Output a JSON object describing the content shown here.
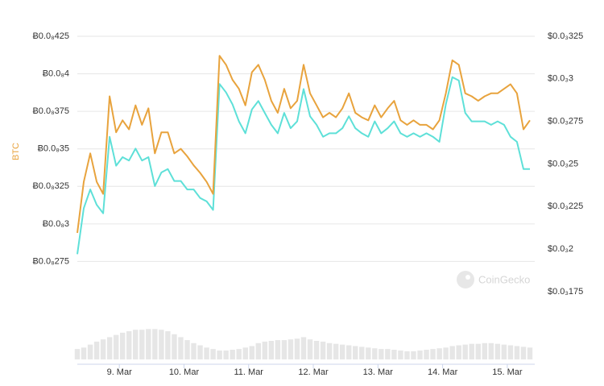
{
  "chart_data": {
    "type": "line",
    "y_axis_label": "BTC",
    "watermark": "CoinGecko",
    "xlim": [
      0,
      70
    ],
    "xticks": [
      {
        "value": 6.5,
        "label": "9. Mar"
      },
      {
        "value": 16.5,
        "label": "10. Mar"
      },
      {
        "value": 26.5,
        "label": "11. Mar"
      },
      {
        "value": 36.5,
        "label": "12. Mar"
      },
      {
        "value": 46.5,
        "label": "13. Mar"
      },
      {
        "value": 56.5,
        "label": "14. Mar"
      },
      {
        "value": 66.5,
        "label": "15. Mar"
      }
    ],
    "ylim": [
      2.5e-09,
      4.25e-09
    ],
    "yticks": [
      {
        "value": 4.25e-09,
        "label": "Ƀ0.0₈425"
      },
      {
        "value": 4e-09,
        "label": "Ƀ0.0₈4"
      },
      {
        "value": 3.75e-09,
        "label": "Ƀ0.0₈375"
      },
      {
        "value": 3.5e-09,
        "label": "Ƀ0.0₈35"
      },
      {
        "value": 3.25e-09,
        "label": "Ƀ0.0₈325"
      },
      {
        "value": 3e-09,
        "label": "Ƀ0.0₈3"
      },
      {
        "value": 2.75e-09,
        "label": "Ƀ0.0₈275"
      }
    ],
    "y2lim": [
      0.0001707,
      0.000325
    ],
    "y2ticks": [
      {
        "value": 0.000325,
        "label": "$0.0₃325"
      },
      {
        "value": 0.0003,
        "label": "$0.0₃3"
      },
      {
        "value": 0.000275,
        "label": "$0.0₃275"
      },
      {
        "value": 0.00025,
        "label": "$0.0₃25"
      },
      {
        "value": 0.000225,
        "label": "$0.0₃225"
      },
      {
        "value": 0.0002,
        "label": "$0.0₃2"
      },
      {
        "value": 0.000175,
        "label": "$0.0₃175"
      }
    ],
    "grid": true,
    "series": [
      {
        "color": "#e8a33d",
        "axis": "y",
        "values": [
          2.94e-09,
          3.28e-09,
          3.47e-09,
          3.28e-09,
          3.2e-09,
          3.85e-09,
          3.61e-09,
          3.69e-09,
          3.63e-09,
          3.79e-09,
          3.66e-09,
          3.77e-09,
          3.47e-09,
          3.61e-09,
          3.61e-09,
          3.47e-09,
          3.5e-09,
          3.45e-09,
          3.39e-09,
          3.34e-09,
          3.28e-09,
          3.2e-09,
          4.12e-09,
          4.06e-09,
          3.96e-09,
          3.9e-09,
          3.79e-09,
          4.01e-09,
          4.06e-09,
          3.96e-09,
          3.82e-09,
          3.74e-09,
          3.9e-09,
          3.77e-09,
          3.82e-09,
          4.06e-09,
          3.87e-09,
          3.79e-09,
          3.71e-09,
          3.74e-09,
          3.71e-09,
          3.77e-09,
          3.87e-09,
          3.74e-09,
          3.71e-09,
          3.69e-09,
          3.79e-09,
          3.71e-09,
          3.77e-09,
          3.82e-09,
          3.69e-09,
          3.66e-09,
          3.69e-09,
          3.66e-09,
          3.66e-09,
          3.63e-09,
          3.69e-09,
          3.87e-09,
          4.09e-09,
          4.06e-09,
          3.87e-09,
          3.85e-09,
          3.82e-09,
          3.85e-09,
          3.87e-09,
          3.87e-09,
          3.9e-09,
          3.93e-09,
          3.87e-09,
          3.63e-09,
          3.69e-09
        ]
      },
      {
        "color": "#5ee0d8",
        "axis": "y2",
        "values": [
          0.000197,
          0.000224,
          0.000235,
          0.000226,
          0.000221,
          0.000266,
          0.000249,
          0.000254,
          0.000252,
          0.000259,
          0.000252,
          0.000254,
          0.000237,
          0.000245,
          0.000247,
          0.00024,
          0.00024,
          0.000235,
          0.000235,
          0.00023,
          0.000228,
          0.000223,
          0.000297,
          0.000292,
          0.000285,
          0.000275,
          0.000268,
          0.000282,
          0.000287,
          0.00028,
          0.000273,
          0.000268,
          0.00028,
          0.000271,
          0.000275,
          0.000294,
          0.000278,
          0.000273,
          0.000266,
          0.000268,
          0.000268,
          0.000271,
          0.000278,
          0.000271,
          0.000268,
          0.000266,
          0.000275,
          0.000268,
          0.000271,
          0.000275,
          0.000268,
          0.000266,
          0.000268,
          0.000266,
          0.000268,
          0.000266,
          0.000263,
          0.000285,
          0.000301,
          0.000299,
          0.00028,
          0.000275,
          0.000275,
          0.000275,
          0.000273,
          0.000275,
          0.000273,
          0.000266,
          0.000263,
          0.000247,
          0.000247
        ]
      }
    ],
    "volume_lim": [
      0,
      50
    ],
    "volume_color": "#e6e6e6",
    "volume": [
      14,
      16,
      20,
      24,
      27,
      30,
      33,
      36,
      38,
      40,
      40,
      41,
      41,
      40,
      38,
      34,
      30,
      26,
      22,
      19,
      16,
      14,
      12,
      12,
      13,
      14,
      16,
      18,
      22,
      24,
      25,
      26,
      26,
      27,
      28,
      30,
      27,
      25,
      24,
      22,
      21,
      20,
      19,
      18,
      17,
      16,
      15,
      14,
      14,
      13,
      12,
      11,
      11,
      12,
      13,
      14,
      15,
      16,
      18,
      19,
      20,
      21,
      21,
      22,
      22,
      21,
      20,
      19,
      18,
      17,
      16
    ]
  }
}
